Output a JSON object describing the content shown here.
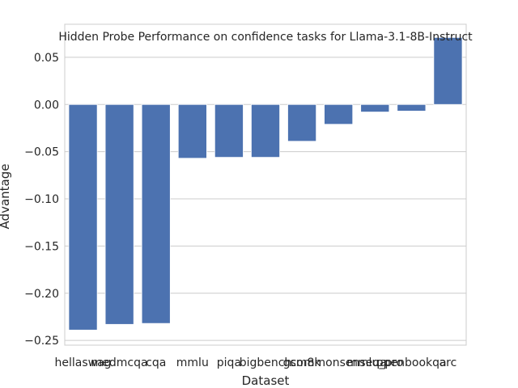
{
  "chart_data": {
    "type": "bar",
    "title": "Hidden Probe Performance on confidence tasks for Llama-3.1-8B-Instruct",
    "xlabel": "Dataset",
    "ylabel": "Advantage",
    "categories": [
      "hellaswag",
      "medmcqa",
      "cqa",
      "mmlu",
      "piqa",
      "bigbench",
      "gsm8k",
      "commonsenseqa",
      "mmlu_pro",
      "openbookqa",
      "arc"
    ],
    "values": [
      -0.239,
      -0.233,
      -0.232,
      -0.057,
      -0.056,
      -0.056,
      -0.039,
      -0.021,
      -0.008,
      -0.007,
      0.071
    ],
    "ylim": [
      -0.255,
      0.085
    ],
    "yticks": [
      -0.25,
      -0.2,
      -0.15,
      -0.1,
      -0.05,
      0.0,
      0.05
    ],
    "ytick_labels": [
      "−0.25",
      "−0.20",
      "−0.15",
      "−0.10",
      "−0.05",
      "0.00",
      "0.05"
    ],
    "grid": "y",
    "bar_color": "#4c72b0"
  }
}
